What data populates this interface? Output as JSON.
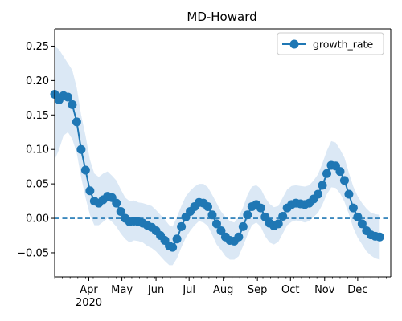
{
  "chart_data": {
    "type": "line",
    "title": "MD-Howard",
    "xlabel": "",
    "ylabel": "",
    "x_range": [
      "2020-03-01",
      "2020-12-31"
    ],
    "ylim": [
      -0.085,
      0.275
    ],
    "y_ticks": [
      -0.05,
      0.0,
      0.05,
      0.1,
      0.15,
      0.2,
      0.25
    ],
    "y_tick_labels": [
      "−0.05",
      "0.00",
      "0.05",
      "0.10",
      "0.15",
      "0.20",
      "0.25"
    ],
    "x_ticks": [
      {
        "date": "2020-04-01",
        "label": "Apr",
        "sublabel": "2020"
      },
      {
        "date": "2020-05-01",
        "label": "May",
        "sublabel": ""
      },
      {
        "date": "2020-06-01",
        "label": "Jun",
        "sublabel": ""
      },
      {
        "date": "2020-07-01",
        "label": "Jul",
        "sublabel": ""
      },
      {
        "date": "2020-08-01",
        "label": "Aug",
        "sublabel": ""
      },
      {
        "date": "2020-09-01",
        "label": "Sep",
        "sublabel": ""
      },
      {
        "date": "2020-10-01",
        "label": "Oct",
        "sublabel": ""
      },
      {
        "date": "2020-11-01",
        "label": "Nov",
        "sublabel": ""
      },
      {
        "date": "2020-12-01",
        "label": "Dec",
        "sublabel": ""
      }
    ],
    "grid": false,
    "legend": {
      "position": "top-right",
      "entries": [
        "growth_rate"
      ]
    },
    "reference_line": {
      "y": 0.0,
      "style": "dashed"
    },
    "colors": {
      "line": "#1f77b4",
      "band": "#dbe8f5"
    },
    "series": [
      {
        "name": "growth_rate",
        "points": [
          {
            "x": "2020-03-01",
            "y": 0.18,
            "lo": 0.085,
            "hi": 0.25
          },
          {
            "x": "2020-03-05",
            "y": 0.172,
            "lo": 0.1,
            "hi": 0.245
          },
          {
            "x": "2020-03-09",
            "y": 0.178,
            "lo": 0.12,
            "hi": 0.235
          },
          {
            "x": "2020-03-13",
            "y": 0.176,
            "lo": 0.125,
            "hi": 0.225
          },
          {
            "x": "2020-03-17",
            "y": 0.165,
            "lo": 0.115,
            "hi": 0.215
          },
          {
            "x": "2020-03-21",
            "y": 0.14,
            "lo": 0.095,
            "hi": 0.19
          },
          {
            "x": "2020-03-25",
            "y": 0.1,
            "lo": 0.06,
            "hi": 0.15
          },
          {
            "x": "2020-03-29",
            "y": 0.07,
            "lo": 0.03,
            "hi": 0.12
          },
          {
            "x": "2020-04-02",
            "y": 0.04,
            "lo": 0.005,
            "hi": 0.085
          },
          {
            "x": "2020-04-06",
            "y": 0.025,
            "lo": -0.01,
            "hi": 0.065
          },
          {
            "x": "2020-04-10",
            "y": 0.022,
            "lo": -0.01,
            "hi": 0.06
          },
          {
            "x": "2020-04-14",
            "y": 0.027,
            "lo": -0.005,
            "hi": 0.065
          },
          {
            "x": "2020-04-18",
            "y": 0.032,
            "lo": 0.0,
            "hi": 0.068
          },
          {
            "x": "2020-04-22",
            "y": 0.03,
            "lo": -0.005,
            "hi": 0.062
          },
          {
            "x": "2020-04-26",
            "y": 0.022,
            "lo": -0.012,
            "hi": 0.055
          },
          {
            "x": "2020-04-30",
            "y": 0.01,
            "lo": -0.022,
            "hi": 0.042
          },
          {
            "x": "2020-05-04",
            "y": 0.0,
            "lo": -0.03,
            "hi": 0.03
          },
          {
            "x": "2020-05-08",
            "y": -0.005,
            "lo": -0.035,
            "hi": 0.025
          },
          {
            "x": "2020-05-12",
            "y": -0.004,
            "lo": -0.032,
            "hi": 0.026
          },
          {
            "x": "2020-05-16",
            "y": -0.005,
            "lo": -0.033,
            "hi": 0.023
          },
          {
            "x": "2020-05-20",
            "y": -0.007,
            "lo": -0.035,
            "hi": 0.022
          },
          {
            "x": "2020-05-24",
            "y": -0.01,
            "lo": -0.04,
            "hi": 0.02
          },
          {
            "x": "2020-05-28",
            "y": -0.013,
            "lo": -0.043,
            "hi": 0.018
          },
          {
            "x": "2020-06-01",
            "y": -0.018,
            "lo": -0.048,
            "hi": 0.012
          },
          {
            "x": "2020-06-05",
            "y": -0.025,
            "lo": -0.055,
            "hi": 0.005
          },
          {
            "x": "2020-06-09",
            "y": -0.032,
            "lo": -0.062,
            "hi": -0.002
          },
          {
            "x": "2020-06-13",
            "y": -0.04,
            "lo": -0.068,
            "hi": -0.01
          },
          {
            "x": "2020-06-16",
            "y": -0.042,
            "lo": -0.068,
            "hi": -0.012
          },
          {
            "x": "2020-06-20",
            "y": -0.03,
            "lo": -0.058,
            "hi": 0.002
          },
          {
            "x": "2020-06-24",
            "y": -0.012,
            "lo": -0.042,
            "hi": 0.018
          },
          {
            "x": "2020-06-28",
            "y": 0.002,
            "lo": -0.028,
            "hi": 0.032
          },
          {
            "x": "2020-07-02",
            "y": 0.01,
            "lo": -0.018,
            "hi": 0.04
          },
          {
            "x": "2020-07-06",
            "y": 0.017,
            "lo": -0.01,
            "hi": 0.046
          },
          {
            "x": "2020-07-10",
            "y": 0.023,
            "lo": -0.004,
            "hi": 0.05
          },
          {
            "x": "2020-07-14",
            "y": 0.022,
            "lo": -0.006,
            "hi": 0.05
          },
          {
            "x": "2020-07-18",
            "y": 0.017,
            "lo": -0.011,
            "hi": 0.045
          },
          {
            "x": "2020-07-22",
            "y": 0.005,
            "lo": -0.024,
            "hi": 0.034
          },
          {
            "x": "2020-07-26",
            "y": -0.008,
            "lo": -0.038,
            "hi": 0.022
          },
          {
            "x": "2020-07-30",
            "y": -0.018,
            "lo": -0.046,
            "hi": 0.01
          },
          {
            "x": "2020-08-03",
            "y": -0.027,
            "lo": -0.055,
            "hi": 0.002
          },
          {
            "x": "2020-08-07",
            "y": -0.032,
            "lo": -0.06,
            "hi": -0.004
          },
          {
            "x": "2020-08-11",
            "y": -0.033,
            "lo": -0.06,
            "hi": -0.006
          },
          {
            "x": "2020-08-15",
            "y": -0.027,
            "lo": -0.055,
            "hi": 0.002
          },
          {
            "x": "2020-08-19",
            "y": -0.012,
            "lo": -0.04,
            "hi": 0.016
          },
          {
            "x": "2020-08-23",
            "y": 0.005,
            "lo": -0.024,
            "hi": 0.034
          },
          {
            "x": "2020-08-27",
            "y": 0.017,
            "lo": -0.01,
            "hi": 0.046
          },
          {
            "x": "2020-08-31",
            "y": 0.02,
            "lo": -0.006,
            "hi": 0.048
          },
          {
            "x": "2020-09-04",
            "y": 0.015,
            "lo": -0.012,
            "hi": 0.043
          },
          {
            "x": "2020-09-08",
            "y": 0.002,
            "lo": -0.026,
            "hi": 0.03
          },
          {
            "x": "2020-09-12",
            "y": -0.007,
            "lo": -0.035,
            "hi": 0.021
          },
          {
            "x": "2020-09-16",
            "y": -0.011,
            "lo": -0.038,
            "hi": 0.016
          },
          {
            "x": "2020-09-20",
            "y": -0.008,
            "lo": -0.034,
            "hi": 0.018
          },
          {
            "x": "2020-09-24",
            "y": 0.003,
            "lo": -0.022,
            "hi": 0.03
          },
          {
            "x": "2020-09-28",
            "y": 0.015,
            "lo": -0.01,
            "hi": 0.042
          },
          {
            "x": "2020-10-02",
            "y": 0.02,
            "lo": -0.005,
            "hi": 0.047
          },
          {
            "x": "2020-10-06",
            "y": 0.022,
            "lo": -0.003,
            "hi": 0.048
          },
          {
            "x": "2020-10-10",
            "y": 0.021,
            "lo": -0.004,
            "hi": 0.047
          },
          {
            "x": "2020-10-14",
            "y": 0.02,
            "lo": -0.006,
            "hi": 0.046
          },
          {
            "x": "2020-10-18",
            "y": 0.022,
            "lo": -0.004,
            "hi": 0.048
          },
          {
            "x": "2020-10-22",
            "y": 0.028,
            "lo": 0.002,
            "hi": 0.055
          },
          {
            "x": "2020-10-26",
            "y": 0.035,
            "lo": 0.008,
            "hi": 0.064
          },
          {
            "x": "2020-10-30",
            "y": 0.048,
            "lo": 0.02,
            "hi": 0.08
          },
          {
            "x": "2020-11-03",
            "y": 0.065,
            "lo": 0.035,
            "hi": 0.098
          },
          {
            "x": "2020-11-07",
            "y": 0.077,
            "lo": 0.045,
            "hi": 0.112
          },
          {
            "x": "2020-11-11",
            "y": 0.076,
            "lo": 0.044,
            "hi": 0.11
          },
          {
            "x": "2020-11-15",
            "y": 0.068,
            "lo": 0.036,
            "hi": 0.1
          },
          {
            "x": "2020-11-19",
            "y": 0.055,
            "lo": 0.024,
            "hi": 0.088
          },
          {
            "x": "2020-11-23",
            "y": 0.035,
            "lo": 0.006,
            "hi": 0.066
          },
          {
            "x": "2020-11-27",
            "y": 0.015,
            "lo": -0.014,
            "hi": 0.046
          },
          {
            "x": "2020-12-01",
            "y": 0.002,
            "lo": -0.028,
            "hi": 0.032
          },
          {
            "x": "2020-12-05",
            "y": -0.008,
            "lo": -0.038,
            "hi": 0.022
          },
          {
            "x": "2020-12-09",
            "y": -0.018,
            "lo": -0.048,
            "hi": 0.014
          },
          {
            "x": "2020-12-13",
            "y": -0.024,
            "lo": -0.054,
            "hi": 0.008
          },
          {
            "x": "2020-12-17",
            "y": -0.026,
            "lo": -0.058,
            "hi": 0.006
          },
          {
            "x": "2020-12-21",
            "y": -0.027,
            "lo": -0.06,
            "hi": 0.005
          }
        ]
      }
    ]
  }
}
